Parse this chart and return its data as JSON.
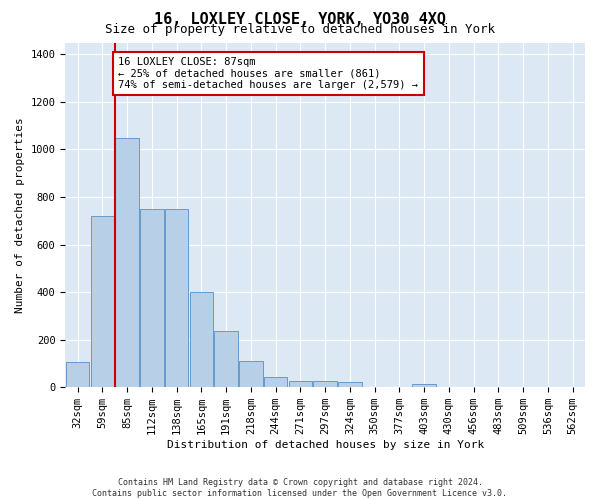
{
  "title": "16, LOXLEY CLOSE, YORK, YO30 4XQ",
  "subtitle": "Size of property relative to detached houses in York",
  "xlabel": "Distribution of detached houses by size in York",
  "ylabel": "Number of detached properties",
  "footnote": "Contains HM Land Registry data © Crown copyright and database right 2024.\nContains public sector information licensed under the Open Government Licence v3.0.",
  "bin_labels": [
    "32sqm",
    "59sqm",
    "85sqm",
    "112sqm",
    "138sqm",
    "165sqm",
    "191sqm",
    "218sqm",
    "244sqm",
    "271sqm",
    "297sqm",
    "324sqm",
    "350sqm",
    "377sqm",
    "403sqm",
    "430sqm",
    "456sqm",
    "483sqm",
    "509sqm",
    "536sqm",
    "562sqm"
  ],
  "bar_values": [
    105,
    720,
    1050,
    750,
    750,
    400,
    235,
    110,
    45,
    28,
    28,
    20,
    0,
    0,
    15,
    0,
    0,
    0,
    0,
    0,
    0
  ],
  "bar_color": "#b8cfe8",
  "bar_edge_color": "#6699cc",
  "vline_x_index": 2,
  "vline_label": "16 LOXLEY CLOSE: 87sqm",
  "annotation_line1": "← 25% of detached houses are smaller (861)",
  "annotation_line2": "74% of semi-detached houses are larger (2,579) →",
  "annotation_box_color": "#ffffff",
  "annotation_border_color": "#cc0000",
  "vline_color": "#cc0000",
  "ylim": [
    0,
    1450
  ],
  "yticks": [
    0,
    200,
    400,
    600,
    800,
    1000,
    1200,
    1400
  ],
  "background_color": "#dde8f5",
  "grid_color": "#ffffff",
  "fig_background": "#ffffff",
  "title_fontsize": 11,
  "subtitle_fontsize": 9,
  "axis_label_fontsize": 8,
  "tick_fontsize": 7.5,
  "annotation_fontsize": 7.5,
  "footnote_fontsize": 6
}
